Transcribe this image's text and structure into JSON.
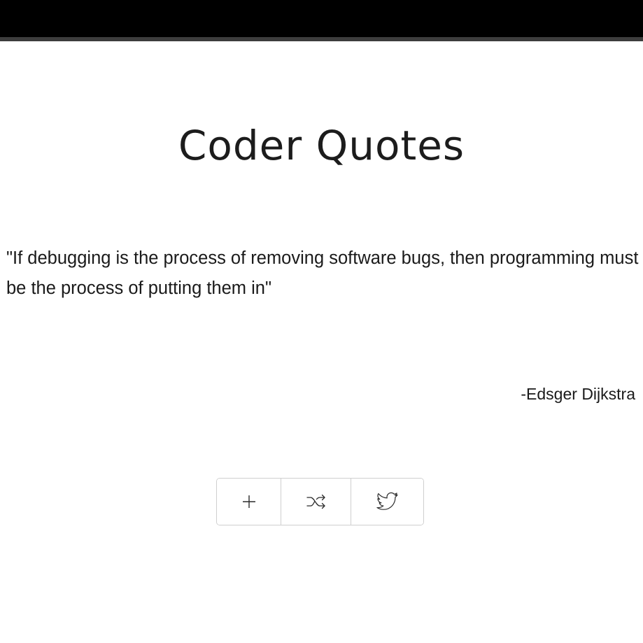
{
  "header": {
    "title": "Coder Quotes"
  },
  "quote": {
    "text": "\"If debugging is the process of removing software bugs, then programming must be the process of putting them in\"",
    "author": "-Edsger Dijkstra"
  },
  "actions": [
    {
      "name": "add",
      "icon": "plus-icon"
    },
    {
      "name": "shuffle",
      "icon": "shuffle-icon"
    },
    {
      "name": "tweet",
      "icon": "twitter-bird-icon"
    }
  ],
  "colors": {
    "topbar": "#000000",
    "topbar_border": "#3d3d3d",
    "text": "#1a1a1a",
    "button_border": "#cfcfcf"
  }
}
